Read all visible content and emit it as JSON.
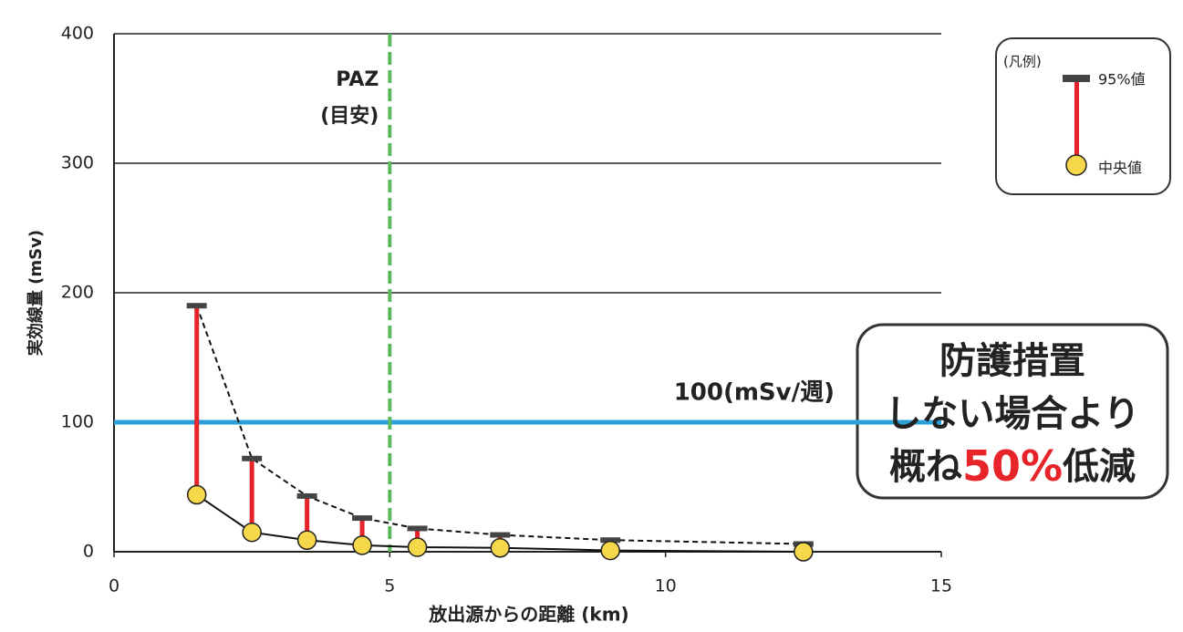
{
  "chart_data": {
    "type": "errorbar",
    "ylabel": "実効線量 (mSv)",
    "xlabel": "放出源からの距離 (km)",
    "x": [
      1.5,
      2.5,
      3.5,
      4.5,
      5.5,
      7,
      9,
      12.5
    ],
    "series": [
      {
        "name": "95%値",
        "color": "#444444",
        "values": [
          190,
          72,
          43,
          26,
          18,
          13,
          9,
          6
        ]
      },
      {
        "name": "中央値",
        "color": "#f7d84a",
        "values": [
          44,
          15,
          9,
          5,
          3.5,
          3,
          1,
          0
        ]
      }
    ],
    "bar_color": "#e8242b",
    "xlim": [
      0,
      15
    ],
    "xticks": [
      0,
      5,
      10,
      15
    ],
    "ylim": [
      0,
      400
    ],
    "yticks": [
      0,
      100,
      200,
      300,
      400
    ],
    "grid": true,
    "reference_lines": [
      {
        "axis": "y",
        "value": 100,
        "label": "100(mSv/週)",
        "color": "#2a9fd8"
      },
      {
        "axis": "x",
        "value": 5,
        "label": [
          "PAZ",
          "(目安)"
        ],
        "color": "#5cb85c"
      }
    ],
    "legend": {
      "title": "(凡例)",
      "position": "upper right"
    },
    "annotation": {
      "lines": [
        "防護措置",
        "しない場合より"
      ],
      "last": [
        "概ね",
        "50%",
        "低減"
      ],
      "highlight": "#e8242b"
    }
  }
}
